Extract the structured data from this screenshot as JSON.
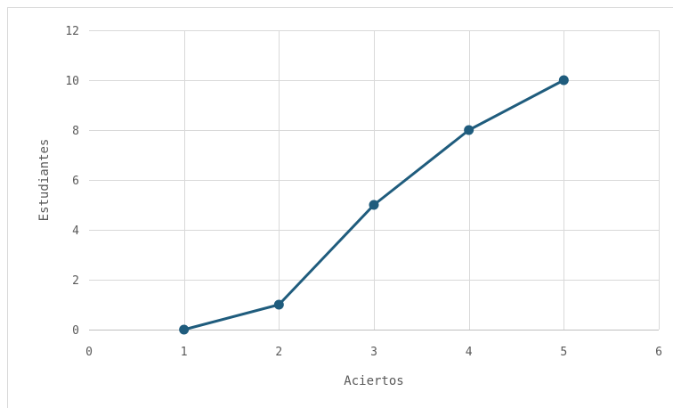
{
  "chart_data": {
    "type": "scatter",
    "xlabel": "Aciertos",
    "ylabel": "Estudiantes",
    "xlim": [
      0,
      6
    ],
    "ylim": [
      0,
      12
    ],
    "x_ticks": [
      "0",
      "1",
      "2",
      "3",
      "4",
      "5",
      "6"
    ],
    "y_ticks": [
      "0",
      "2",
      "4",
      "6",
      "8",
      "10",
      "12"
    ],
    "grid": true,
    "legend": "none",
    "series": [
      {
        "style": "line-with-markers",
        "color": "#1f5c7d",
        "points": [
          {
            "x": 1,
            "y": 0
          },
          {
            "x": 2,
            "y": 1
          },
          {
            "x": 3,
            "y": 5
          },
          {
            "x": 4,
            "y": 8
          },
          {
            "x": 5,
            "y": 10
          }
        ]
      }
    ]
  },
  "colors": {
    "series": "#1f5c7d",
    "grid": "#d9d9d9",
    "text": "#595959"
  }
}
